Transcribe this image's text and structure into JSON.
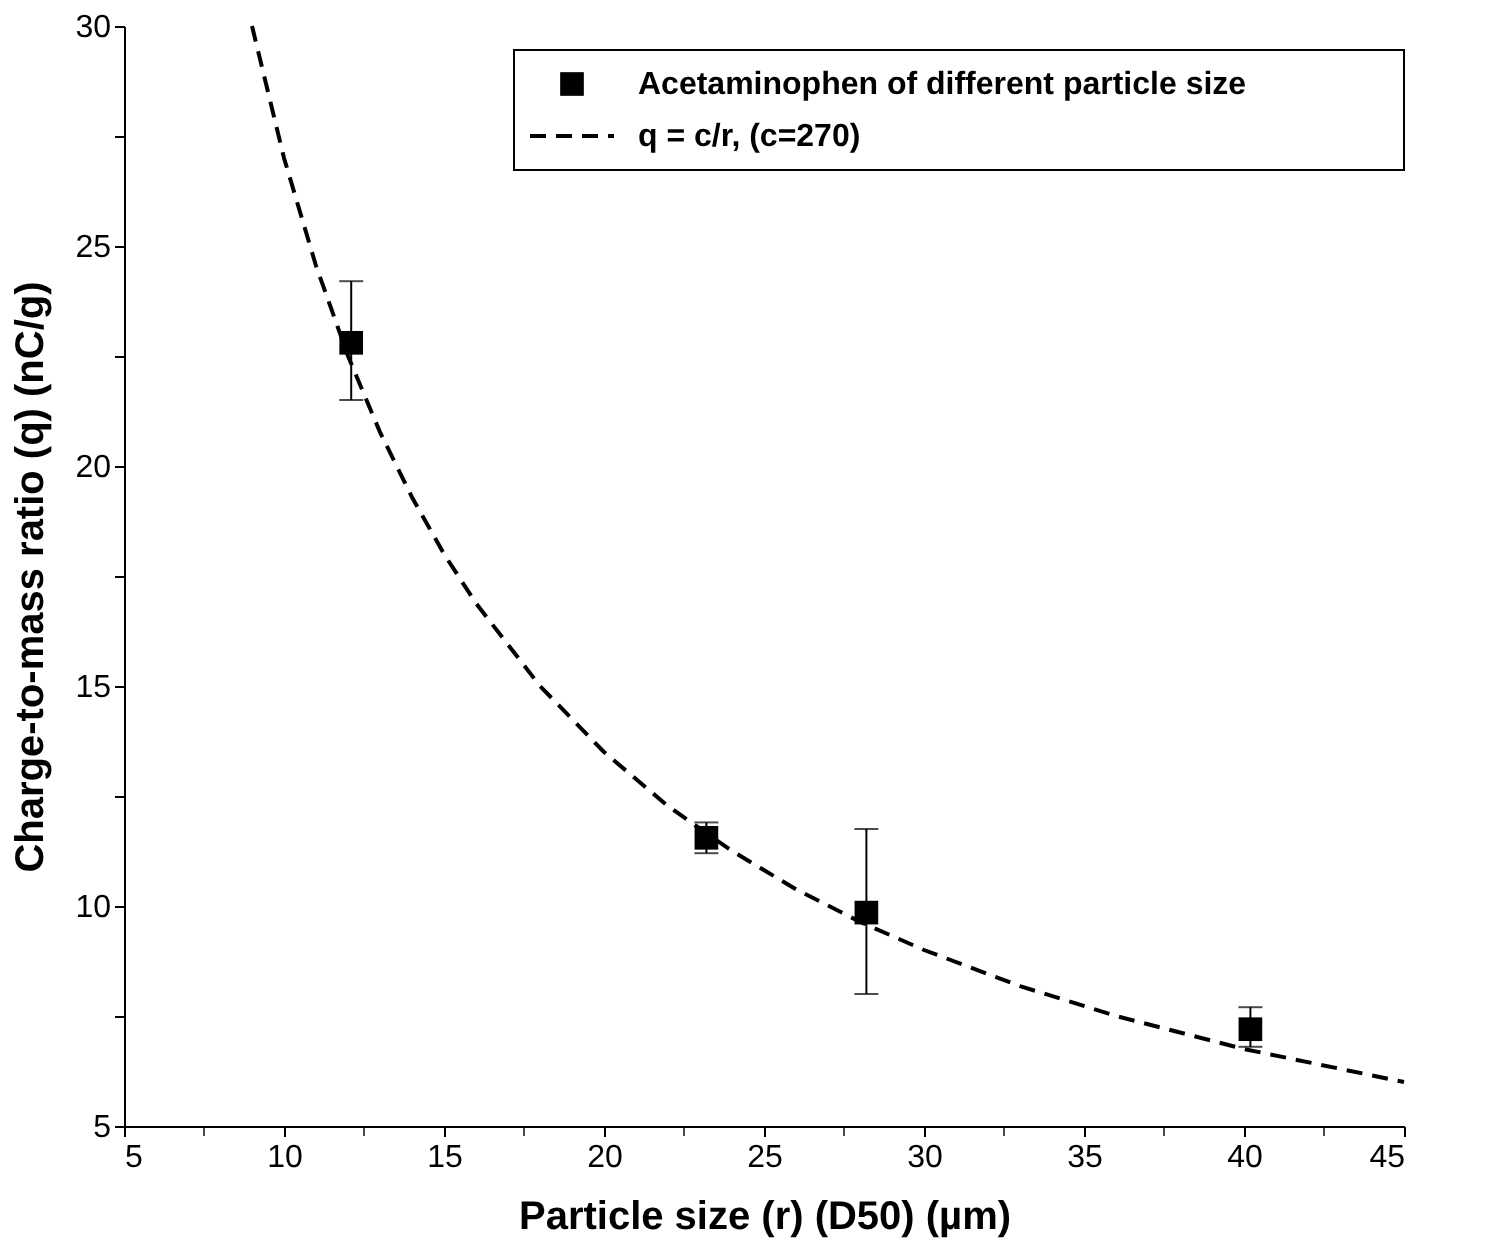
{
  "chart_data": {
    "type": "scatter",
    "xlabel": "Particle size (r) (D50) (µm)",
    "ylabel": "Charge-to-mass ratio (q) (nC/g)",
    "xlim": [
      5,
      45
    ],
    "ylim": [
      5,
      30
    ],
    "xticks": [
      5,
      {
        "value": 7.5,
        "label": null
      },
      10,
      {
        "value": 12.5,
        "label": null
      },
      15,
      {
        "value": 17.5,
        "label": null
      },
      20,
      {
        "value": 22.5,
        "label": null
      },
      25,
      {
        "value": 27.5,
        "label": null
      },
      30,
      {
        "value": 32.5,
        "label": null
      },
      35,
      {
        "value": 37.5,
        "label": null
      },
      40,
      {
        "value": 42.5,
        "label": null
      },
      45
    ],
    "yticks": [
      5,
      {
        "value": 7.5,
        "label": null
      },
      10,
      {
        "value": 12.5,
        "label": null
      },
      15,
      {
        "value": 17.5,
        "label": null
      },
      20,
      {
        "value": 22.5,
        "label": null
      },
      25,
      {
        "value": 27.5,
        "label": null
      },
      30
    ],
    "grid": false,
    "legend": "top right",
    "series": [
      {
        "name": "Acetaminophen of different particle size",
        "marker": "square",
        "color": "#000000",
        "x": [
          12.1,
          23.2,
          28.2,
          40.2
        ],
        "values": [
          22.8,
          11.55,
          9.85,
          7.2
        ],
        "errors": [
          [
            21.5,
            24.2
          ],
          [
            11.2,
            11.9
          ],
          [
            8.0,
            11.75
          ],
          [
            6.8,
            7.7
          ]
        ]
      },
      {
        "name": "q = c/r, (c=270)",
        "type": "line",
        "line_style": "dashed",
        "marker": "none",
        "color": "#000000",
        "x": [
          9,
          10,
          11,
          12,
          13,
          14,
          15,
          16,
          18,
          20,
          22,
          24,
          26,
          28,
          30,
          33,
          36,
          40,
          45
        ],
        "values": [
          30,
          27,
          24.55,
          22.5,
          20.77,
          19.29,
          18,
          16.88,
          15,
          13.5,
          12.27,
          11.25,
          10.38,
          9.64,
          9,
          8.18,
          7.5,
          6.75,
          6
        ]
      }
    ]
  }
}
